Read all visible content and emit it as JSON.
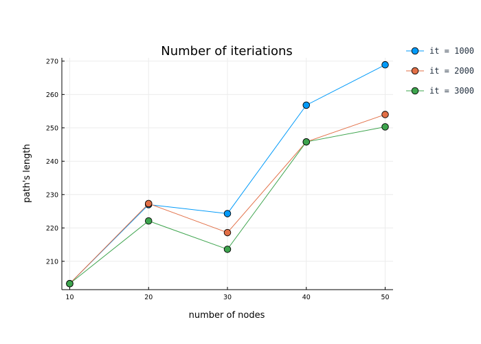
{
  "chart_data": {
    "type": "line",
    "title": "Number of iteriations",
    "xlabel": "number of nodes",
    "ylabel": "path's length",
    "x": [
      10,
      20,
      30,
      40,
      50
    ],
    "xlim": [
      9,
      51
    ],
    "ylim": [
      201.5,
      271
    ],
    "yticks": [
      210,
      220,
      230,
      240,
      250,
      260,
      270
    ],
    "grid": true,
    "legend_position": "top-right outside",
    "series": [
      {
        "name": "it = 1000",
        "color": "#009AF9",
        "values": [
          203.3,
          227.0,
          224.3,
          256.8,
          268.9
        ]
      },
      {
        "name": "it = 2000",
        "color": "#E26F46",
        "values": [
          203.3,
          227.3,
          218.6,
          245.8,
          254.0
        ]
      },
      {
        "name": "it = 3000",
        "color": "#3DA44D",
        "values": [
          203.3,
          222.1,
          213.6,
          245.8,
          250.3
        ]
      }
    ]
  }
}
